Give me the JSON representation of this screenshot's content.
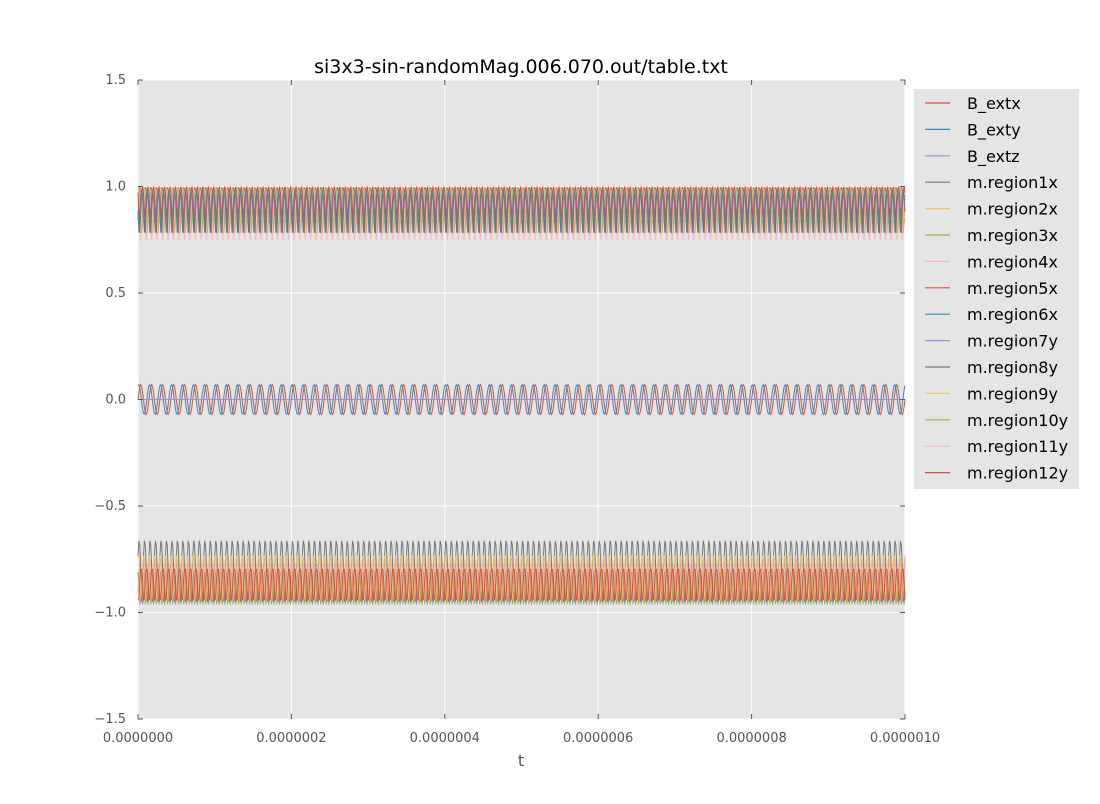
{
  "chart_data": {
    "type": "line",
    "title": "si3x3-sin-randomMag.006.070.out/table.txt",
    "xlabel": "t",
    "ylabel": "",
    "xlim": [
      0,
      1e-06
    ],
    "ylim": [
      -1.5,
      1.5
    ],
    "x_ticks": [
      "0.0000000",
      "0.0000002",
      "0.0000004",
      "0.0000006",
      "0.0000008",
      "0.0000010"
    ],
    "y_ticks": [
      "1.5",
      "1.0",
      "0.5",
      "0.0",
      "−0.5",
      "−1.0",
      "−1.5"
    ],
    "grid": true,
    "legend_position": "outside-right",
    "background": "#e5e5e5",
    "oscillation_cycles": 70,
    "series": [
      {
        "name": "B_extx",
        "color": "#e24a33",
        "center": 0.0,
        "amplitude": 0.07,
        "shape": "sin",
        "phase": 0.0
      },
      {
        "name": "B_exty",
        "color": "#348abd",
        "center": 0.0,
        "amplitude": 0.07,
        "shape": "sin",
        "phase": 1.2
      },
      {
        "name": "B_extz",
        "color": "#988ed5",
        "center": 0.0,
        "amplitude": 0.0,
        "shape": "sin",
        "phase": 0.0
      },
      {
        "name": "m.region1x",
        "color": "#777777",
        "center": 0.89,
        "amplitude": 0.11,
        "shape": "abs",
        "phase": 0.3
      },
      {
        "name": "m.region2x",
        "color": "#fbc15e",
        "center": 0.88,
        "amplitude": 0.11,
        "shape": "abs",
        "phase": 0.7
      },
      {
        "name": "m.region3x",
        "color": "#8eba42",
        "center": 0.88,
        "amplitude": 0.11,
        "shape": "abs",
        "phase": 1.1
      },
      {
        "name": "m.region4x",
        "color": "#ffb5b8",
        "center": 0.87,
        "amplitude": 0.13,
        "shape": "abs",
        "phase": 1.6
      },
      {
        "name": "m.region5x",
        "color": "#e24a33",
        "center": 0.89,
        "amplitude": 0.11,
        "shape": "abs",
        "phase": 2.1
      },
      {
        "name": "m.region6x",
        "color": "#348abd",
        "center": 0.88,
        "amplitude": 0.1,
        "shape": "abs",
        "phase": 2.6
      },
      {
        "name": "m.region7y",
        "color": "#988ed5",
        "center": -0.88,
        "amplitude": 0.11,
        "shape": "abs",
        "phase": 0.4
      },
      {
        "name": "m.region8y",
        "color": "#777777",
        "center": -0.83,
        "amplitude": 0.17,
        "shape": "abs",
        "phase": 0.9
      },
      {
        "name": "m.region9y",
        "color": "#fbc15e",
        "center": -0.86,
        "amplitude": 0.13,
        "shape": "abs",
        "phase": 1.4
      },
      {
        "name": "m.region10y",
        "color": "#8eba42",
        "center": -0.9,
        "amplitude": 0.1,
        "shape": "abs",
        "phase": 1.9
      },
      {
        "name": "m.region11y",
        "color": "#ffb5b8",
        "center": -0.88,
        "amplitude": 0.11,
        "shape": "abs",
        "phase": 2.4
      },
      {
        "name": "m.region12y",
        "color": "#e24a33",
        "center": -0.89,
        "amplitude": 0.1,
        "shape": "abs",
        "phase": 2.9
      }
    ]
  }
}
